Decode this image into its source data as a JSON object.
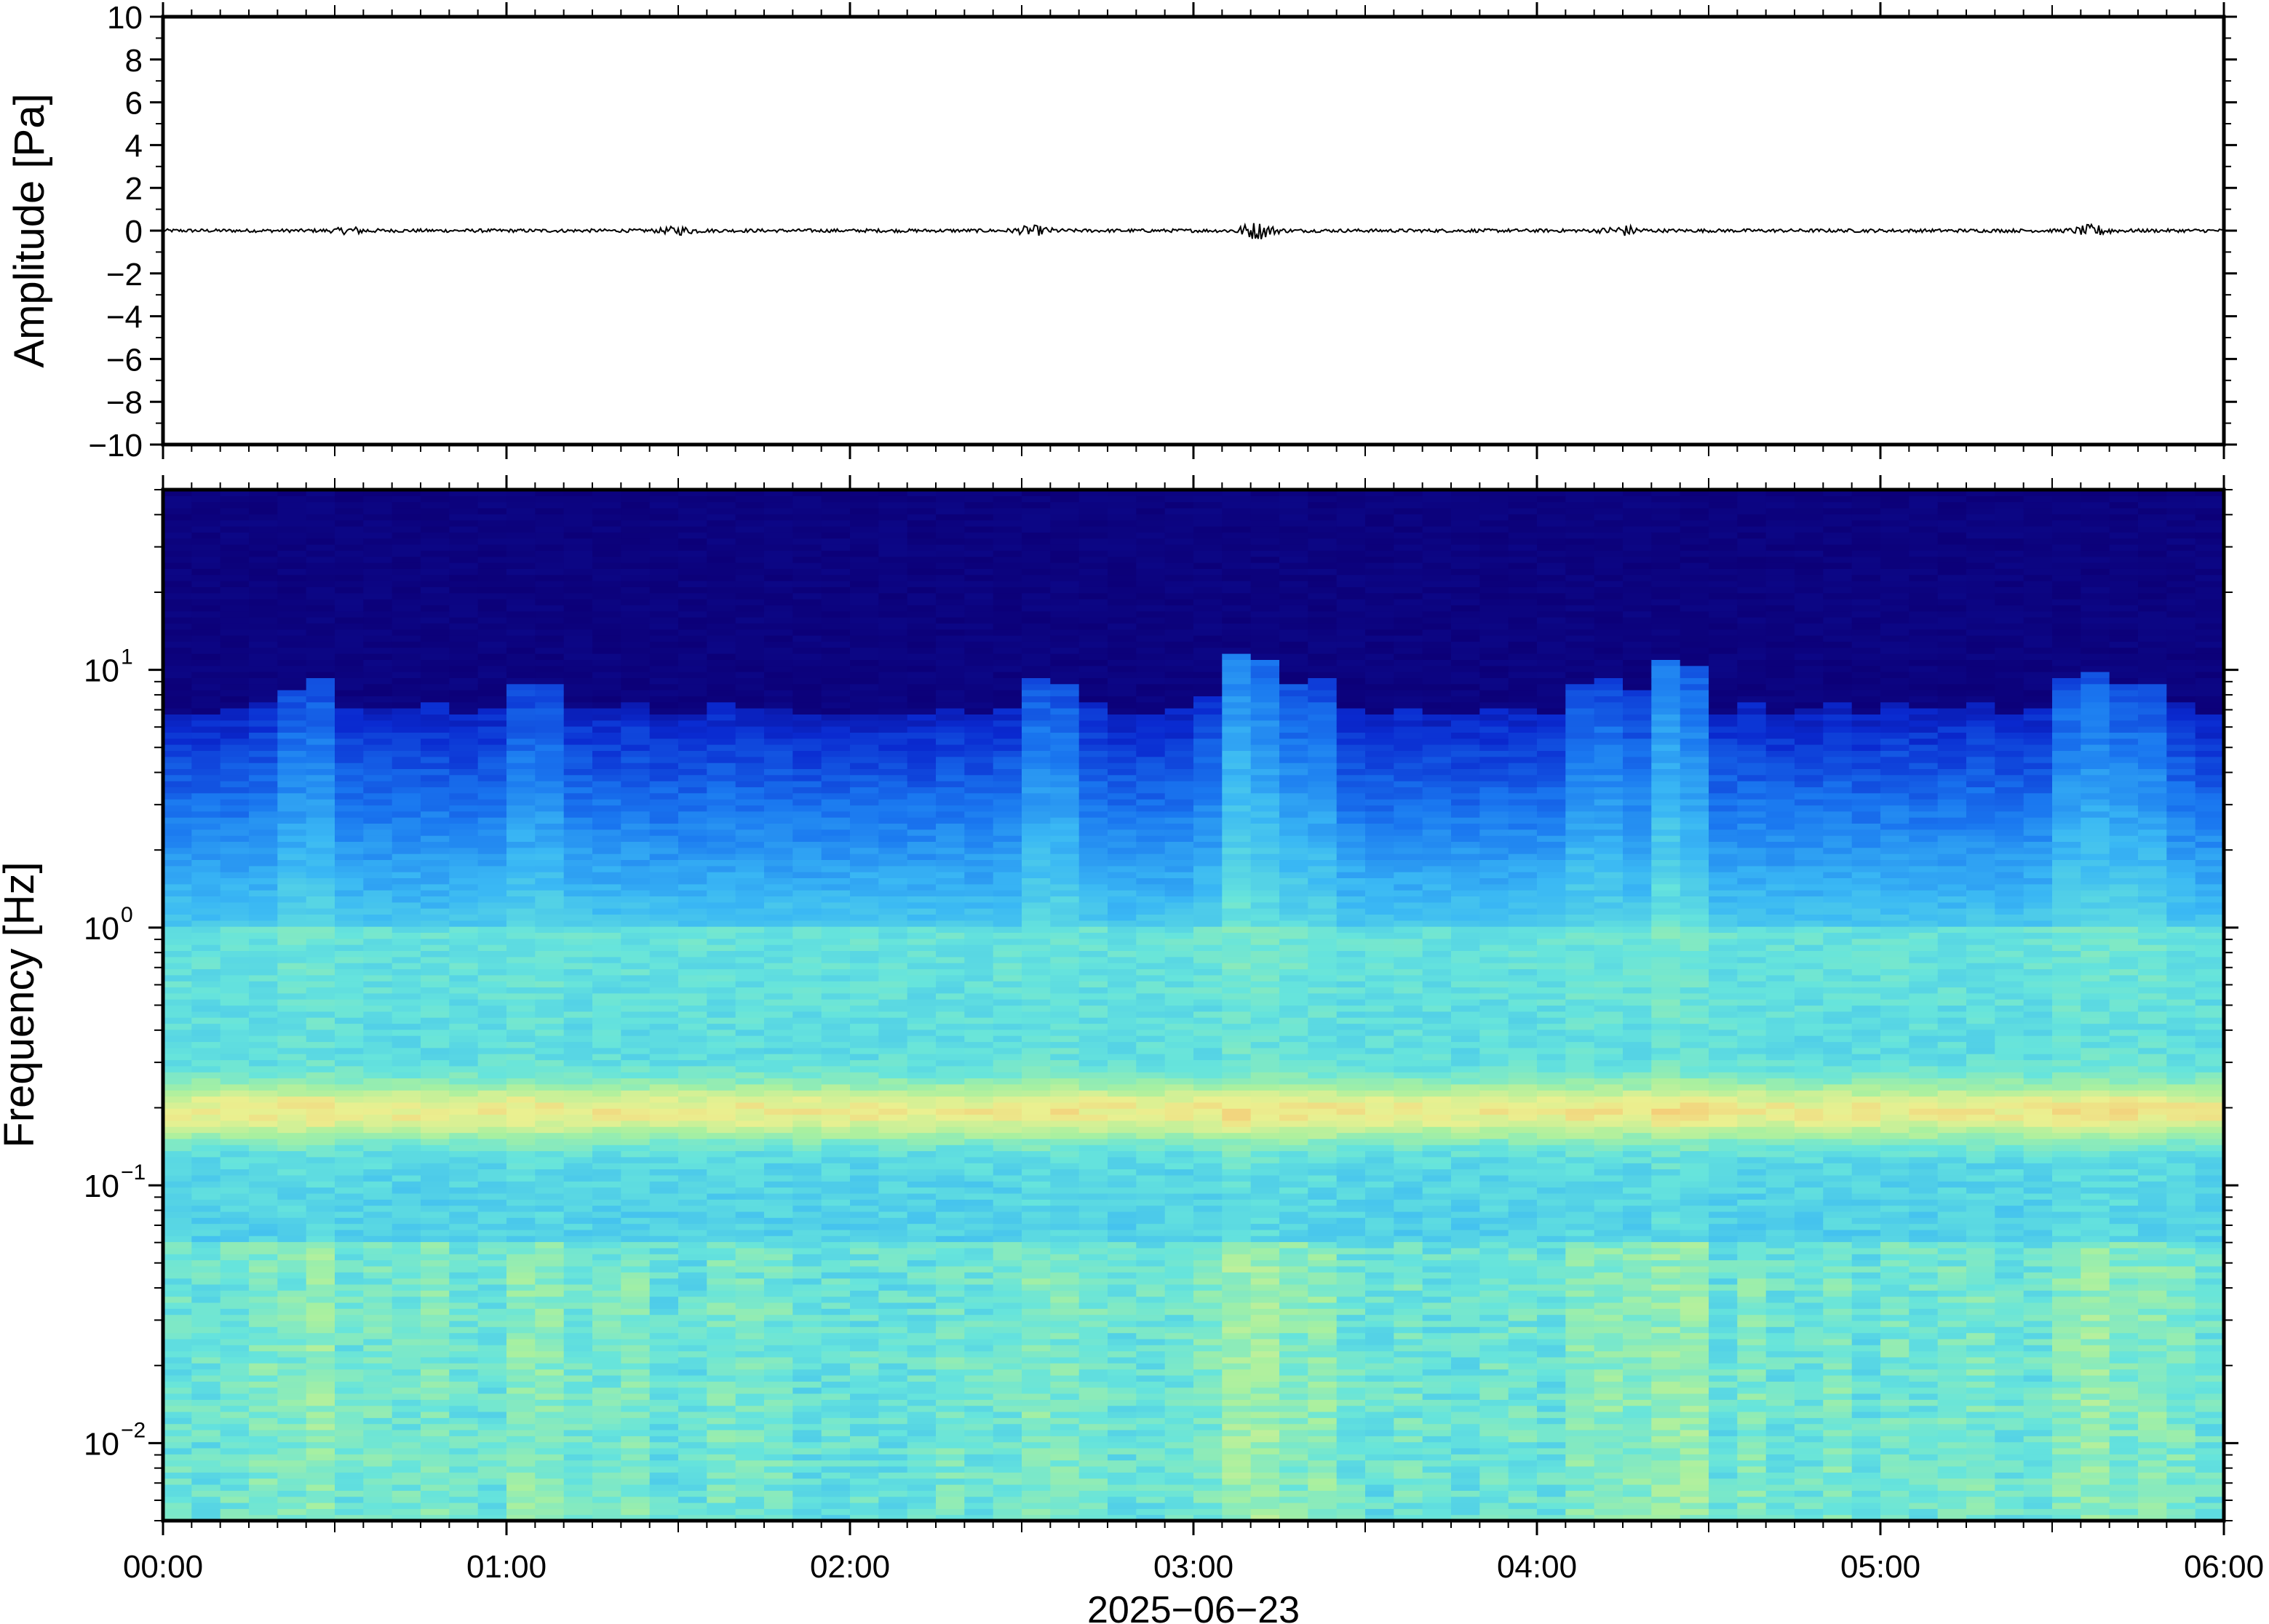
{
  "chart_data": [
    {
      "type": "line",
      "panel": "waveform",
      "ylabel": "Amplitude [Pa]",
      "ylim": [
        -10,
        10
      ],
      "yticks": [
        {
          "value": 10,
          "label": "10"
        },
        {
          "value": 8,
          "label": "8"
        },
        {
          "value": 6,
          "label": "6"
        },
        {
          "value": 4,
          "label": "4"
        },
        {
          "value": 2,
          "label": "2"
        },
        {
          "value": 0,
          "label": "0"
        },
        {
          "value": -2,
          "label": "−2"
        },
        {
          "value": -4,
          "label": "−4"
        },
        {
          "value": -6,
          "label": "−6"
        },
        {
          "value": -8,
          "label": "−8"
        },
        {
          "value": -10,
          "label": "−10"
        }
      ],
      "xlim": [
        "00:00",
        "06:00"
      ],
      "series": [
        {
          "color": "#000000",
          "baseline": 0,
          "noise_amplitude": 0.08,
          "bursts": [
            {
              "time": "00:33",
              "amplitude": 0.12
            },
            {
              "time": "01:30",
              "amplitude": 0.14
            },
            {
              "time": "02:32",
              "amplitude": 0.18
            },
            {
              "time": "03:11",
              "amplitude": 0.35
            },
            {
              "time": "04:15",
              "amplitude": 0.2
            },
            {
              "time": "05:37",
              "amplitude": 0.22
            }
          ]
        }
      ]
    },
    {
      "type": "heatmap",
      "panel": "spectrogram",
      "ylabel": "Frequency [Hz]",
      "yscale": "log",
      "ylim": [
        0.005,
        50
      ],
      "yticks": [
        {
          "value": 10,
          "base": "10",
          "exp": "1"
        },
        {
          "value": 1,
          "base": "10",
          "exp": "0"
        },
        {
          "value": 0.1,
          "base": "10",
          "exp": "−1"
        },
        {
          "value": 0.01,
          "base": "10",
          "exp": "−2"
        }
      ],
      "colormap": [
        "#0c0078",
        "#0a2ad0",
        "#1a78f0",
        "#3ab8f4",
        "#66e4dc",
        "#a8f0a0",
        "#eaf090",
        "#f8c070",
        "#f08a50"
      ],
      "energetic_columns": [
        {
          "time": "00:25",
          "strength": 0.5
        },
        {
          "time": "01:05",
          "strength": 0.4
        },
        {
          "time": "02:35",
          "strength": 0.6
        },
        {
          "time": "03:09",
          "strength": 1.0
        },
        {
          "time": "03:20",
          "strength": 0.5
        },
        {
          "time": "04:10",
          "strength": 0.5
        },
        {
          "time": "04:24",
          "strength": 0.9
        },
        {
          "time": "05:35",
          "strength": 0.6
        },
        {
          "time": "05:45",
          "strength": 0.5
        }
      ],
      "microseism_band_hz": [
        0.15,
        0.25
      ]
    }
  ],
  "xaxis": {
    "ticks": [
      "00:00",
      "01:00",
      "02:00",
      "03:00",
      "04:00",
      "05:00",
      "06:00"
    ],
    "label": "2025−06−23"
  }
}
